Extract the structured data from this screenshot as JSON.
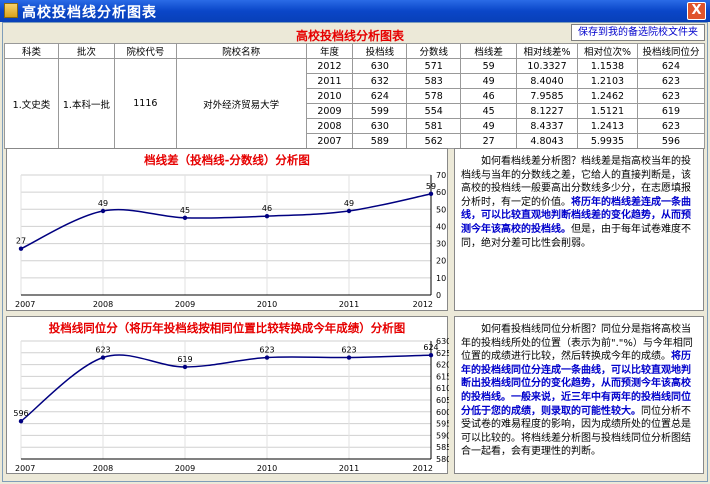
{
  "window": {
    "title": "高校投档线分析图表",
    "close_label": "X"
  },
  "toolbar": {
    "save_label": "保存到我的备选院校文件夹"
  },
  "table": {
    "title": "高校投档线分析图表",
    "headers": [
      "科类",
      "批次",
      "院校代号",
      "院校名称",
      "年度",
      "投档线",
      "分数线",
      "档线差",
      "相对线差%",
      "相对位次%",
      "投档线同位分"
    ],
    "category": "1.文史类",
    "batch": "1.本科一批",
    "code": "1116",
    "name": "对外经济贸易大学",
    "rows": [
      [
        "2012",
        "630",
        "571",
        "59",
        "10.3327",
        "1.1538",
        "624"
      ],
      [
        "2011",
        "632",
        "583",
        "49",
        "8.4040",
        "1.2103",
        "623"
      ],
      [
        "2010",
        "624",
        "578",
        "46",
        "7.9585",
        "1.2462",
        "623"
      ],
      [
        "2009",
        "599",
        "554",
        "45",
        "8.1227",
        "1.5121",
        "619"
      ],
      [
        "2008",
        "630",
        "581",
        "49",
        "8.4337",
        "1.2413",
        "623"
      ],
      [
        "2007",
        "589",
        "562",
        "27",
        "4.8043",
        "5.9935",
        "596"
      ]
    ]
  },
  "chart_data": [
    {
      "type": "line",
      "title": "档线差（投档线-分数线）分析图",
      "x": [
        "2007",
        "2008",
        "2009",
        "2010",
        "2011",
        "2012"
      ],
      "values": [
        27,
        49,
        45,
        46,
        49,
        59
      ],
      "ylim": [
        0,
        70
      ],
      "yticks": [
        "0",
        "10",
        "20",
        "30",
        "40",
        "50",
        "60",
        "70"
      ],
      "grid": true,
      "line_color": "#000080"
    },
    {
      "type": "line",
      "title": "投档线同位分（将历年投档线按相同位置比较转换成今年成绩）分析图",
      "x": [
        "2007",
        "2008",
        "2009",
        "2010",
        "2011",
        "2012"
      ],
      "values": [
        596,
        623,
        619,
        623,
        623,
        624
      ],
      "ylim": [
        580,
        630
      ],
      "yticks": [
        "580",
        "585",
        "590",
        "595",
        "600",
        "605",
        "610",
        "615",
        "620",
        "625",
        "630"
      ],
      "grid": true,
      "line_color": "#000080"
    }
  ],
  "explain1": {
    "p1": "　　如何看档线差分析图？档线差是指高校当年的投档线与当年的分数线之差，它给人的直接判断是，该高校的投档线一般要高出分数线多少分，在志愿填报分析时，有一定的价值。",
    "p2": "将历年的档线差连成一条曲线，可以比较直观地判断档线差的变化趋势，从而预测今年该高校的投档线。",
    "p3": "但是，由于每年试卷难度不同，绝对分差可比性会削弱。"
  },
  "explain2": {
    "p1": "　　如何看投档线同位分析图？同位分是指将高校当年的投档线所处的位置（表示为前\".\"%）与今年相同位置的成绩进行比较，然后转换成今年的成绩。",
    "p2": "将历年的投档线同位分连成一条曲线，可以比较直观地判断出投档线同位分的变化趋势，从而预测今年该高校的投档线。一般来说，近三年中有两年的投档线同位分低于您的成绩，则录取的可能性较大。",
    "p3": "同位分析不受试卷的难易程度的影响，因为成绩所处的位置总是可以比较的。将档线差分析图与投档线同位分析图结合一起看，会有更理性的判断。"
  }
}
